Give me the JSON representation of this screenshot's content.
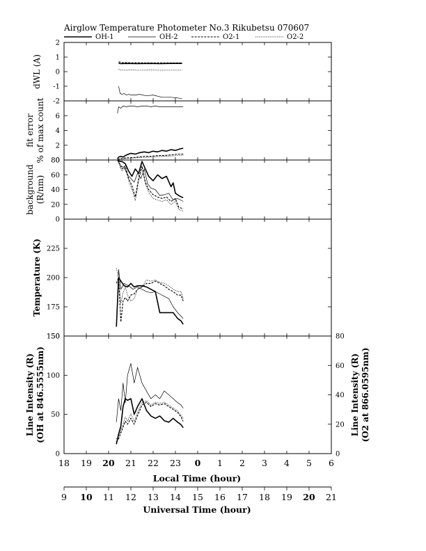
{
  "chart_data": {
    "type": "line",
    "title": "Airglow Temperature Photometer No.3  Rikubetsu   070607",
    "legend": [
      "OH-1",
      "OH-2",
      "O2-1",
      "O2-2"
    ],
    "styles": {
      "OH-1": "solid-thick",
      "OH-2": "solid-thin",
      "O2-1": "dashed-thick",
      "O2-2": "dotted-thin"
    },
    "colors": {
      "lines": "#000000",
      "background": "#ffffff"
    },
    "x_axis": {
      "label": "Local Time (hour)",
      "range": [
        18,
        30
      ],
      "tick_labels": [
        "18",
        "19",
        "20",
        "21",
        "22",
        "23",
        "0",
        "1",
        "2",
        "3",
        "4",
        "5",
        "6"
      ],
      "bold_tick_labels": [
        "20",
        "0"
      ]
    },
    "x_axis_ut": {
      "label": "Universal Time (hour)",
      "tick_labels": [
        "9",
        "10",
        "11",
        "12",
        "13",
        "14",
        "15",
        "16",
        "17",
        "18",
        "19",
        "20",
        "21"
      ],
      "bold_tick_labels": [
        "10",
        "20"
      ]
    },
    "panels": [
      {
        "id": "dwl",
        "ylabel_lines": [
          "dWL (A)"
        ],
        "ylim": [
          -2,
          2
        ],
        "yticks": [
          -2,
          -1,
          0,
          1,
          2
        ],
        "series": [
          {
            "name": "OH-1",
            "x": [
              20.45,
              20.55,
              20.8,
              21.3,
              21.8,
              22.3,
              22.8,
              23.3
            ],
            "y": [
              0.58,
              0.55,
              0.56,
              0.55,
              0.56,
              0.55,
              0.56,
              0.56
            ]
          },
          {
            "name": "OH-2",
            "x": [
              20.45,
              20.52,
              20.6,
              20.7,
              20.8,
              20.9,
              21.0,
              21.2,
              21.4,
              21.7,
              22.0,
              22.4,
              22.8,
              23.1,
              23.3
            ],
            "y": [
              -1.0,
              -1.5,
              -1.55,
              -1.5,
              -1.6,
              -1.55,
              -1.6,
              -1.6,
              -1.55,
              -1.65,
              -1.6,
              -1.75,
              -1.75,
              -1.8,
              -1.85
            ]
          },
          {
            "name": "O2-1",
            "x": [
              20.45,
              20.6,
              20.8,
              21.0,
              21.3,
              21.6,
              21.9,
              22.2,
              22.5,
              22.8,
              23.1,
              23.3
            ],
            "y": [
              0.68,
              0.62,
              0.62,
              0.6,
              0.61,
              0.6,
              0.6,
              0.6,
              0.6,
              0.6,
              0.6,
              0.6
            ]
          },
          {
            "name": "O2-2",
            "x": [
              20.45,
              20.6,
              20.8,
              21.0,
              21.3,
              21.6,
              21.9,
              22.2,
              22.5,
              22.8,
              23.1,
              23.3
            ],
            "y": [
              0.15,
              0.1,
              0.1,
              0.12,
              0.1,
              0.1,
              0.12,
              0.1,
              0.1,
              0.1,
              0.1,
              0.1
            ]
          }
        ]
      },
      {
        "id": "fit",
        "ylabel_lines": [
          "fit error",
          "% of max count"
        ],
        "ylim": [
          0,
          8
        ],
        "yticks": [
          0,
          2,
          4,
          6
        ],
        "series": [
          {
            "name": "OH-1",
            "x": [
              20.4,
              20.45,
              20.55,
              20.65,
              20.75,
              20.9,
              21.0,
              21.2,
              21.4,
              21.6,
              21.8,
              22.0,
              22.2,
              22.4,
              22.6,
              22.8,
              23.0,
              23.2,
              23.35
            ],
            "y": [
              0.2,
              0.4,
              0.5,
              0.4,
              0.6,
              0.8,
              0.9,
              0.8,
              1.0,
              1.1,
              1.0,
              1.2,
              1.1,
              1.3,
              1.2,
              1.4,
              1.3,
              1.5,
              1.6
            ]
          },
          {
            "name": "OH-2",
            "x": [
              20.4,
              20.45,
              20.55,
              20.65,
              20.8,
              20.95,
              21.1,
              21.3,
              21.5,
              21.7,
              21.9,
              22.1,
              22.3,
              22.5,
              22.7,
              22.9,
              23.1,
              23.35
            ],
            "y": [
              6.3,
              7.2,
              7.0,
              7.3,
              7.2,
              7.3,
              7.3,
              7.2,
              7.3,
              7.3,
              7.2,
              7.3,
              7.2,
              7.2,
              7.2,
              7.2,
              7.2,
              7.2
            ]
          },
          {
            "name": "O2-1",
            "x": [
              20.4,
              20.6,
              20.8,
              21.0,
              21.3,
              21.6,
              21.9,
              22.2,
              22.5,
              22.8,
              23.1,
              23.35
            ],
            "y": [
              0.1,
              0.2,
              0.3,
              0.3,
              0.4,
              0.5,
              0.5,
              0.6,
              0.6,
              0.7,
              0.8,
              0.8
            ]
          },
          {
            "name": "O2-2",
            "x": [
              20.4,
              20.6,
              20.8,
              21.0,
              21.3,
              21.6,
              21.9,
              22.2,
              22.5,
              22.8,
              23.1,
              23.35
            ],
            "y": [
              0.1,
              0.15,
              0.2,
              0.25,
              0.3,
              0.35,
              0.4,
              0.45,
              0.5,
              0.55,
              0.6,
              0.65
            ]
          }
        ]
      },
      {
        "id": "bg",
        "ylabel_lines": [
          "background",
          "(R/nm)"
        ],
        "ylim": [
          0,
          80
        ],
        "yticks": [
          0,
          20,
          40,
          60,
          80
        ],
        "series": [
          {
            "name": "OH-1",
            "x": [
              20.4,
              20.5,
              20.6,
              20.75,
              20.9,
              21.05,
              21.2,
              21.35,
              21.5,
              21.65,
              21.8,
              22.0,
              22.2,
              22.4,
              22.6,
              22.8,
              22.9,
              23.0,
              23.1,
              23.2,
              23.35
            ],
            "y": [
              80,
              78,
              78,
              75,
              65,
              58,
              68,
              62,
              78,
              68,
              58,
              52,
              60,
              55,
              58,
              44,
              49,
              35,
              33,
              31,
              29
            ]
          },
          {
            "name": "OH-2",
            "x": [
              20.4,
              20.55,
              20.7,
              20.85,
              21.0,
              21.15,
              21.3,
              21.45,
              21.6,
              21.75,
              21.9,
              22.1,
              22.3,
              22.5,
              22.7,
              22.9,
              23.1,
              23.35
            ],
            "y": [
              80,
              72,
              70,
              60,
              55,
              50,
              62,
              55,
              68,
              48,
              42,
              40,
              32,
              33,
              35,
              26,
              28,
              24
            ]
          },
          {
            "name": "O2-1",
            "x": [
              20.4,
              20.5,
              20.6,
              20.75,
              20.9,
              21.05,
              21.2,
              21.35,
              21.5,
              21.65,
              21.8,
              22.0,
              22.2,
              22.4,
              22.6,
              22.8,
              23.0,
              23.15,
              23.35
            ],
            "y": [
              80,
              75,
              68,
              72,
              55,
              45,
              30,
              55,
              72,
              50,
              40,
              33,
              30,
              28,
              30,
              24,
              28,
              16,
              14
            ]
          },
          {
            "name": "O2-2",
            "x": [
              20.4,
              20.5,
              20.6,
              20.75,
              20.9,
              21.05,
              21.2,
              21.35,
              21.5,
              21.65,
              21.8,
              22.0,
              22.2,
              22.4,
              22.6,
              22.8,
              23.0,
              23.15,
              23.35
            ],
            "y": [
              80,
              72,
              65,
              70,
              52,
              40,
              25,
              52,
              70,
              48,
              36,
              28,
              26,
              24,
              26,
              20,
              24,
              13,
              11
            ]
          }
        ]
      },
      {
        "id": "temp",
        "ylabel_lines": [
          "Temperature (K)"
        ],
        "ylim": [
          150,
          250
        ],
        "yticks": [
          150,
          175,
          200,
          225
        ],
        "series": [
          {
            "name": "OH-1",
            "x": [
              20.35,
              20.45,
              20.55,
              20.7,
              20.85,
              21.0,
              21.15,
              21.3,
              21.5,
              21.7,
              21.9,
              22.1,
              22.3,
              22.5,
              22.7,
              22.9,
              23.1,
              23.25,
              23.35
            ],
            "y": [
              158,
              200,
              197,
              193,
              192,
              195,
              192,
              193,
              193,
              192,
              190,
              188,
              170,
              170,
              170,
              170,
              165,
              163,
              160
            ]
          },
          {
            "name": "OH-2",
            "x": [
              20.35,
              20.45,
              20.55,
              20.7,
              20.9,
              21.1,
              21.3,
              21.5,
              21.7,
              21.9,
              22.1,
              22.3,
              22.5,
              22.7,
              22.9,
              23.1,
              23.35
            ],
            "y": [
              158,
              207,
              190,
              195,
              193,
              190,
              192,
              190,
              188,
              187,
              188,
              186,
              184,
              182,
              175,
              170,
              165
            ]
          },
          {
            "name": "O2-1",
            "x": [
              20.35,
              20.45,
              20.55,
              20.65,
              20.75,
              20.85,
              21.0,
              21.15,
              21.3,
              21.5,
              21.7,
              21.9,
              22.1,
              22.3,
              22.5,
              22.7,
              22.9,
              23.1,
              23.25,
              23.35
            ],
            "y": [
              195,
              200,
              162,
              180,
              183,
              180,
              185,
              186,
              190,
              192,
              195,
              195,
              197,
              195,
              193,
              190,
              188,
              185,
              185,
              180
            ]
          },
          {
            "name": "O2-2",
            "x": [
              20.35,
              20.45,
              20.55,
              20.65,
              20.75,
              20.85,
              21.0,
              21.15,
              21.3,
              21.5,
              21.7,
              21.9,
              22.1,
              22.3,
              22.5,
              22.7,
              22.9,
              23.1,
              23.25,
              23.35
            ],
            "y": [
              208,
              200,
              178,
              187,
              192,
              185,
              180,
              182,
              190,
              192,
              198,
              197,
              198,
              196,
              195,
              193,
              190,
              188,
              188,
              182
            ]
          }
        ]
      },
      {
        "id": "int",
        "ylabel_lines": [
          "Line Intensity (R)",
          "(OH at 846.5555nm)"
        ],
        "ylim": [
          0,
          150
        ],
        "yticks": [
          0,
          50,
          100,
          150
        ],
        "ylabel_right_lines": [
          "Line Intensity (R)",
          "(O2 at 866.0595nm)"
        ],
        "ylim_right": [
          0,
          80
        ],
        "yticks_right": [
          0,
          20,
          40,
          60,
          80
        ],
        "series": [
          {
            "name": "OH-1",
            "axis": "left",
            "x": [
              20.35,
              20.45,
              20.55,
              20.65,
              20.75,
              20.85,
              21.0,
              21.15,
              21.3,
              21.5,
              21.7,
              21.9,
              22.1,
              22.3,
              22.5,
              22.7,
              22.9,
              23.1,
              23.25,
              23.35
            ],
            "y": [
              12,
              25,
              35,
              60,
              70,
              68,
              70,
              50,
              60,
              70,
              55,
              48,
              45,
              48,
              42,
              40,
              45,
              40,
              37,
              33
            ]
          },
          {
            "name": "OH-2",
            "axis": "left",
            "x": [
              20.35,
              20.45,
              20.55,
              20.65,
              20.75,
              20.85,
              21.0,
              21.15,
              21.3,
              21.5,
              21.7,
              21.9,
              22.1,
              22.3,
              22.5,
              22.7,
              22.9,
              23.1,
              23.25,
              23.35
            ],
            "y": [
              40,
              70,
              55,
              90,
              65,
              100,
              115,
              90,
              110,
              90,
              80,
              70,
              75,
              70,
              80,
              75,
              70,
              65,
              62,
              58
            ]
          },
          {
            "name": "O2-1",
            "axis": "right",
            "x": [
              20.35,
              20.45,
              20.55,
              20.65,
              20.75,
              20.85,
              21.0,
              21.15,
              21.3,
              21.5,
              21.7,
              21.9,
              22.1,
              22.3,
              22.5,
              22.7,
              22.9,
              23.1,
              23.25,
              23.35
            ],
            "y": [
              8,
              10,
              14,
              18,
              22,
              20,
              24,
              20,
              26,
              33,
              35,
              32,
              34,
              33,
              34,
              32,
              30,
              28,
              25,
              22
            ]
          },
          {
            "name": "O2-2",
            "axis": "right",
            "x": [
              20.35,
              20.45,
              20.55,
              20.65,
              20.75,
              20.85,
              21.0,
              21.15,
              21.3,
              21.5,
              21.7,
              21.9,
              22.1,
              22.3,
              22.5,
              22.7,
              22.9,
              23.1,
              23.25,
              23.35
            ],
            "y": [
              10,
              12,
              16,
              20,
              25,
              22,
              27,
              22,
              28,
              35,
              36,
              33,
              35,
              34,
              35,
              33,
              31,
              29,
              26,
              24
            ]
          }
        ]
      }
    ]
  }
}
